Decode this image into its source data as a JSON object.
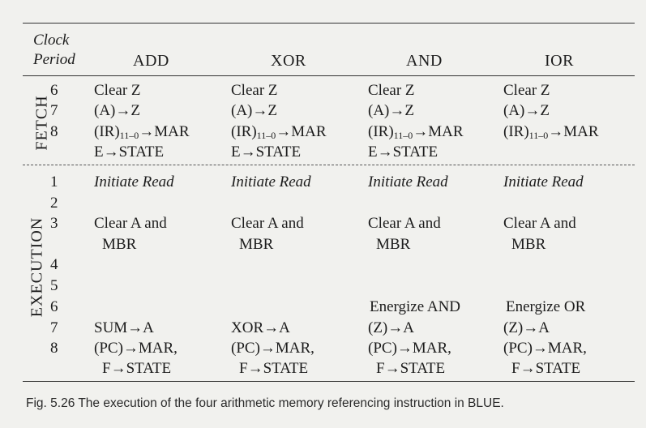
{
  "header": {
    "clock_line1": "Clock",
    "clock_line2": "Period",
    "columns": [
      "ADD",
      "XOR",
      "AND",
      "IOR"
    ]
  },
  "phases": {
    "fetch": "FETCH",
    "execution": "EXECUTION"
  },
  "fetch_rows": [
    {
      "period": "6",
      "cells": [
        "Clear Z",
        "Clear Z",
        "Clear Z",
        "Clear Z"
      ]
    },
    {
      "period": "7",
      "cells": [
        "(A)→Z",
        "(A)→Z",
        "(A)→Z",
        "(A)→Z"
      ]
    },
    {
      "period": "8",
      "cells": [
        "(IR)11–0→MAR",
        "(IR)11–0→MAR",
        "(IR)11–0→MAR",
        "(IR)11–0→MAR"
      ]
    },
    {
      "period": "",
      "cells": [
        "E→STATE",
        "E→STATE",
        "E→STATE",
        ""
      ]
    }
  ],
  "fetch_ir": {
    "prefix": "(IR)",
    "subscript": "11–0",
    "suffix": "→MAR"
  },
  "execution_rows": [
    {
      "period": "1",
      "cells": [
        "Initiate Read",
        "Initiate Read",
        "Initiate Read",
        "Initiate Read"
      ]
    },
    {
      "period": "2",
      "cells": [
        "",
        "",
        "",
        ""
      ]
    },
    {
      "period": "3",
      "cells": [
        "Clear A and",
        "Clear A and",
        "Clear A and",
        "Clear A and"
      ]
    },
    {
      "period": "",
      "cells": [
        "MBR",
        "MBR",
        "MBR",
        "MBR"
      ]
    },
    {
      "period": "4",
      "cells": [
        "",
        "",
        "",
        ""
      ]
    },
    {
      "period": "5",
      "cells": [
        "",
        "",
        "",
        ""
      ]
    },
    {
      "period": "6",
      "cells": [
        "",
        "",
        "Energize AND",
        "Energize OR"
      ]
    },
    {
      "period": "7",
      "cells": [
        "SUM→A",
        "XOR→A",
        "(Z)→A",
        "(Z)→A"
      ]
    },
    {
      "period": "8",
      "cells": [
        "(PC)→MAR,",
        "(PC)→MAR,",
        "(PC)→MAR,",
        "(PC)→MAR,"
      ]
    },
    {
      "period": "",
      "cells": [
        "F→STATE",
        "F→STATE",
        "F→STATE",
        "F→STATE"
      ]
    }
  ],
  "caption": "Fig. 5.26 The execution of the four arithmetic memory referencing instruction in BLUE."
}
